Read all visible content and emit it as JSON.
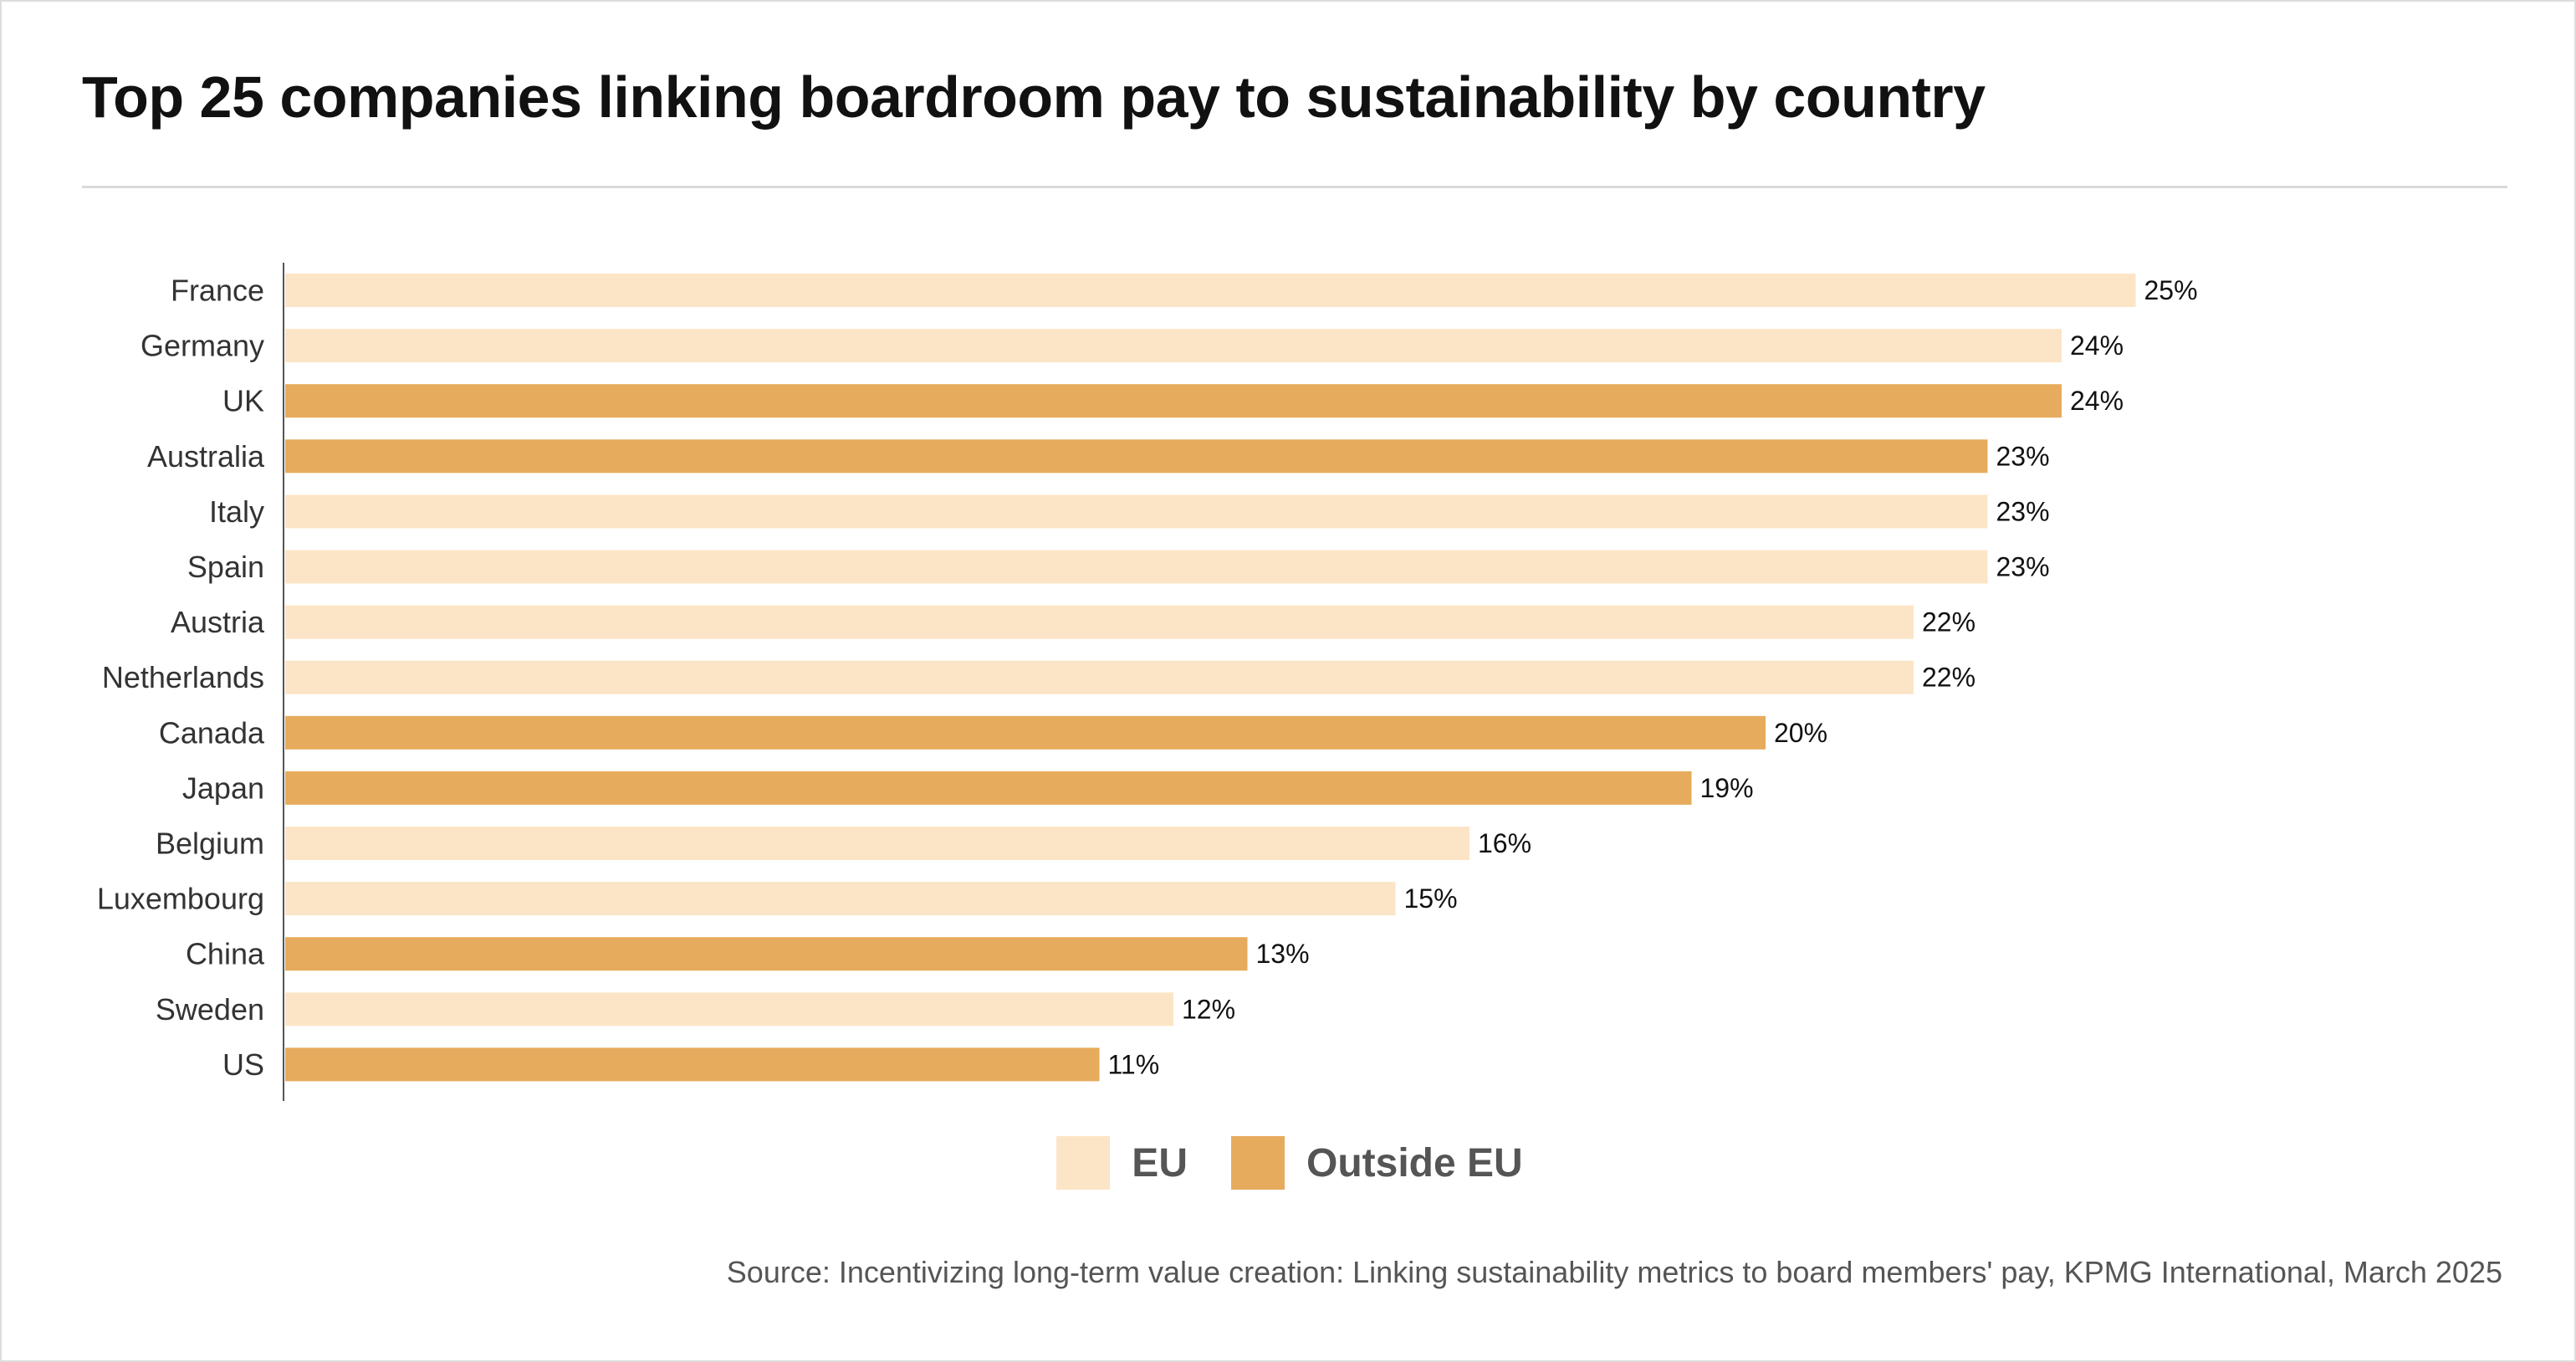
{
  "title": "Top 25 companies linking boardroom pay to sustainability by country",
  "source": "Source: Incentivizing long-term value creation: Linking sustainability metrics to board members' pay, KPMG International, March 2025",
  "colors": {
    "EU": "#fce5c6",
    "Outside EU": "#e6ab5c"
  },
  "legend": [
    {
      "name": "EU",
      "label": "EU"
    },
    {
      "name": "Outside EU",
      "label": "Outside EU"
    }
  ],
  "chart_data": {
    "type": "bar",
    "orientation": "horizontal",
    "title": "Top 25 companies linking boardroom pay to sustainability by country",
    "categories": [
      "France",
      "Germany",
      "UK",
      "Australia",
      "Italy",
      "Spain",
      "Austria",
      "Netherlands",
      "Canada",
      "Japan",
      "Belgium",
      "Luxembourg",
      "China",
      "Sweden",
      "US"
    ],
    "values": [
      25,
      24,
      24,
      23,
      23,
      23,
      22,
      22,
      20,
      19,
      16,
      15,
      13,
      12,
      11
    ],
    "value_labels": [
      "25%",
      "24%",
      "24%",
      "23%",
      "23%",
      "23%",
      "22%",
      "22%",
      "20%",
      "19%",
      "16%",
      "15%",
      "13%",
      "12%",
      "11%"
    ],
    "groups": [
      "EU",
      "EU",
      "Outside EU",
      "Outside EU",
      "EU",
      "EU",
      "EU",
      "EU",
      "Outside EU",
      "Outside EU",
      "EU",
      "EU",
      "Outside EU",
      "EU",
      "Outside EU"
    ],
    "unit": "%",
    "xlim": [
      0,
      25
    ],
    "grid": false,
    "legend_position": "bottom-center"
  }
}
